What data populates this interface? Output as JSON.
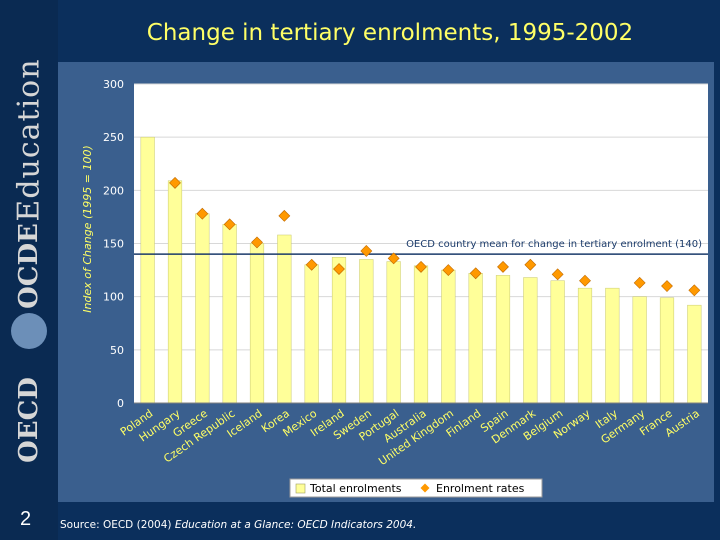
{
  "slide": {
    "title": "Change in tertiary enrolments, 1995-2002",
    "number": "2",
    "source_prefix": "Source: OECD (2004) ",
    "source_title": "Education at a Glance: OECD Indicators 2004."
  },
  "logos": {
    "education": "Education",
    "ocde": "OCDE",
    "oecd": "OECD"
  },
  "colors": {
    "background": "#0b2f5c",
    "title": "#ffff66",
    "bar": "#ffff99",
    "marker": "#ff9900"
  },
  "chart_data": {
    "type": "bar",
    "title": "Change in tertiary enrolments, 1995-2002",
    "ylabel": "Index of Change (1995 = 100)",
    "ylim": [
      0,
      300
    ],
    "yticks": [
      0,
      50,
      100,
      150,
      200,
      250,
      300
    ],
    "categories": [
      "Poland",
      "Hungary",
      "Greece",
      "Czech Republic",
      "Iceland",
      "Korea",
      "Mexico",
      "Ireland",
      "Sweden",
      "Portugal",
      "Australia",
      "United Kingdom",
      "Finland",
      "Spain",
      "Denmark",
      "Belgium",
      "Norway",
      "Italy",
      "Germany",
      "France",
      "Austria"
    ],
    "series": [
      {
        "name": "Total enrolments",
        "kind": "bar",
        "values": [
          250,
          209,
          178,
          168,
          150,
          158,
          130,
          137,
          135,
          133,
          129,
          125,
          122,
          120,
          118,
          115,
          108,
          108,
          100,
          99,
          92
        ]
      },
      {
        "name": "Enrolment rates",
        "kind": "marker",
        "values": [
          null,
          207,
          178,
          168,
          151,
          176,
          130,
          126,
          143,
          136,
          128,
          125,
          122,
          128,
          130,
          121,
          115,
          null,
          113,
          110,
          106
        ]
      }
    ],
    "reference_line": {
      "value": 140,
      "label": "OECD country mean for change in tertiary enrolment (140)"
    },
    "legend": [
      "Total enrolments",
      "Enrolment rates"
    ]
  }
}
